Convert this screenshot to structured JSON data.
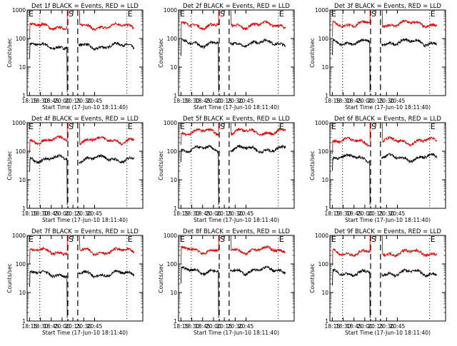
{
  "colors": {
    "events": "#000000",
    "lld": "#dd0000",
    "axes": "#000000",
    "background": "#ffffff"
  },
  "chart_data": {
    "type": "line",
    "grid": false,
    "y_scale": "log",
    "ylim": [
      1,
      1000
    ],
    "ytick_labels": [
      "1",
      "10",
      "100",
      "1000"
    ],
    "xlim": [
      "18:11:40",
      "20:51:40"
    ],
    "xtick_labels": [
      "18:15",
      "18:30",
      "18:45",
      "20:00",
      "20:15",
      "20:30",
      "20:45"
    ],
    "xlabel": "Start Time (17-Jun-10 18:11:40)",
    "ylabel": "Counts/sec",
    "markers": {
      "start": "S",
      "end": "E"
    },
    "panels": [
      {
        "title": "Det 1f  BLACK = Events, RED = LLD",
        "series": [
          {
            "name": "Events",
            "level": 55
          },
          {
            "name": "LLD",
            "level": 270
          }
        ]
      },
      {
        "title": "Det 2f  BLACK = Events, RED = LLD",
        "series": [
          {
            "name": "Events",
            "level": 70
          },
          {
            "name": "LLD",
            "level": 300
          }
        ]
      },
      {
        "title": "Det 3f  BLACK = Events, RED = LLD",
        "series": [
          {
            "name": "Events",
            "level": 75
          },
          {
            "name": "LLD",
            "level": 330
          }
        ]
      },
      {
        "title": "Det 4f  BLACK = Events, RED = LLD",
        "series": [
          {
            "name": "Events",
            "level": 55
          },
          {
            "name": "LLD",
            "level": 250
          }
        ]
      },
      {
        "title": "Det 5f  BLACK = Events, RED = LLD",
        "series": [
          {
            "name": "Events",
            "level": 120
          },
          {
            "name": "LLD",
            "level": 480
          }
        ]
      },
      {
        "title": "Det 6f  BLACK = Events, RED = LLD",
        "series": [
          {
            "name": "Events",
            "level": 60
          },
          {
            "name": "LLD",
            "level": 230
          }
        ]
      },
      {
        "title": "Det 7f  BLACK = Events, RED = LLD",
        "series": [
          {
            "name": "Events",
            "level": 45
          },
          {
            "name": "LLD",
            "level": 280
          }
        ]
      },
      {
        "title": "Det 8f  BLACK = Events, RED = LLD",
        "series": [
          {
            "name": "Events",
            "level": 60
          },
          {
            "name": "LLD",
            "level": 310
          }
        ]
      },
      {
        "title": "Det 9f  BLACK = Events, RED = LLD",
        "series": [
          {
            "name": "Events",
            "level": 50
          },
          {
            "name": "LLD",
            "level": 250
          }
        ]
      }
    ]
  }
}
